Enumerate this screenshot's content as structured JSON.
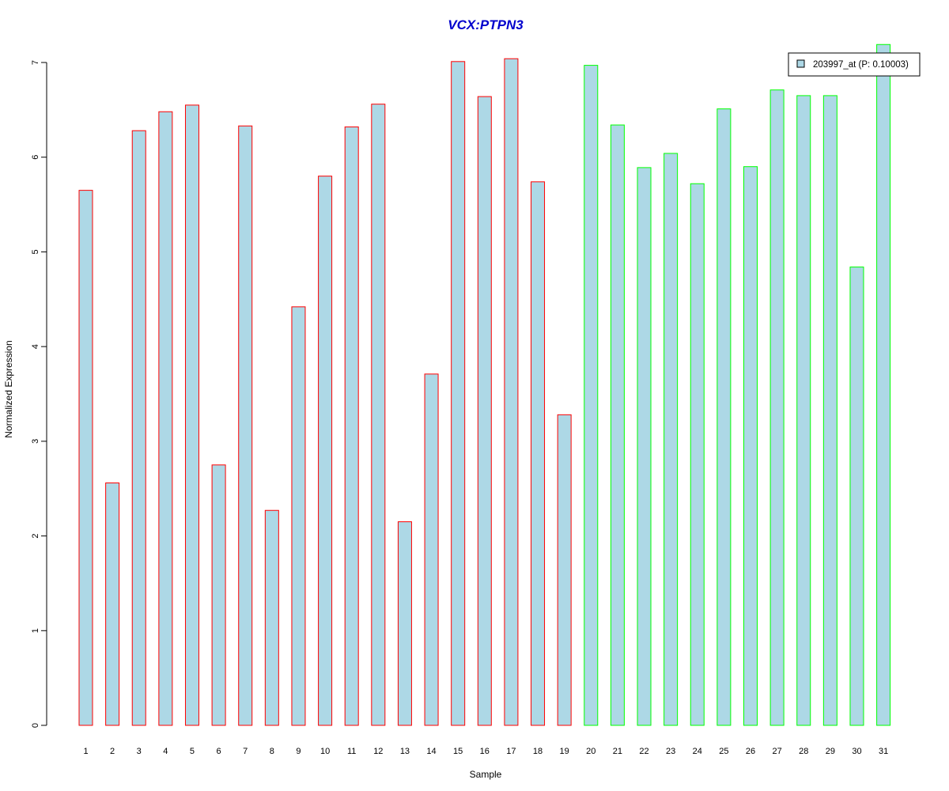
{
  "chart_data": {
    "type": "bar",
    "title": "VCX:PTPN3",
    "xlabel": "Sample",
    "ylabel": "Normalized Expression",
    "ylim": [
      0,
      7
    ],
    "yticks": [
      "0",
      "1",
      "2",
      "3",
      "4",
      "5",
      "6",
      "7"
    ],
    "categories": [
      "1",
      "2",
      "3",
      "4",
      "5",
      "6",
      "7",
      "8",
      "9",
      "10",
      "11",
      "12",
      "13",
      "14",
      "15",
      "16",
      "17",
      "18",
      "19",
      "20",
      "21",
      "22",
      "23",
      "24",
      "25",
      "26",
      "27",
      "28",
      "29",
      "30",
      "31"
    ],
    "values": [
      5.65,
      2.56,
      6.28,
      6.48,
      6.55,
      2.75,
      6.33,
      2.27,
      4.42,
      5.8,
      6.32,
      6.56,
      2.15,
      3.71,
      7.01,
      6.64,
      7.04,
      5.74,
      3.28,
      6.97,
      6.34,
      5.89,
      6.04,
      5.72,
      6.51,
      5.9,
      6.71,
      6.65,
      6.65,
      4.84,
      7.19
    ],
    "groups": [
      1,
      1,
      1,
      1,
      1,
      1,
      1,
      1,
      1,
      1,
      1,
      1,
      1,
      1,
      1,
      1,
      1,
      1,
      1,
      2,
      2,
      2,
      2,
      2,
      2,
      2,
      2,
      2,
      2,
      2,
      2
    ],
    "series": [
      {
        "name": "203997_at (P: 0.10003)"
      }
    ],
    "legend_position": "top-right",
    "grid": false,
    "colors": {
      "bar_fill": "#add8e6",
      "group1_border": "#ff0000",
      "group2_border": "#00ff00",
      "title": "#0000cd",
      "axis": "#000000"
    }
  }
}
